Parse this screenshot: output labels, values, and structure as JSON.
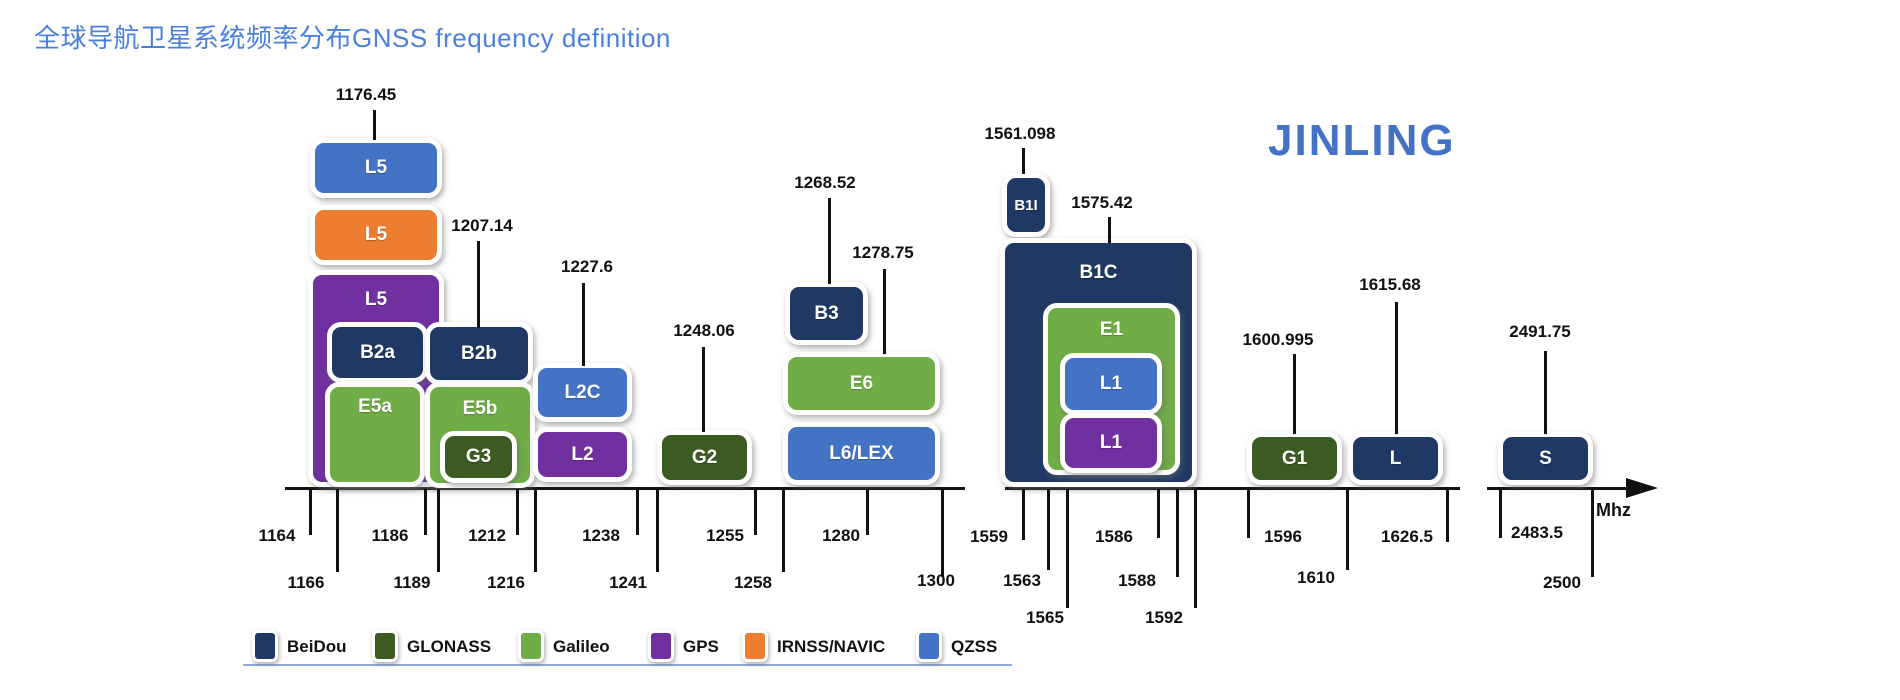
{
  "title": "全球导航卫星系统频率分布GNSS frequency definition",
  "brand": "JINLING",
  "axis": {
    "unit": "Mhz"
  },
  "systems": {
    "beidou": {
      "name": "BeiDou",
      "color": "#1f3864"
    },
    "glonass": {
      "name": "GLONASS",
      "color": "#3b5b23"
    },
    "galileo": {
      "name": "Galileo",
      "color": "#70ad47"
    },
    "gps": {
      "name": "GPS",
      "color": "#7030a0"
    },
    "irnss": {
      "name": "IRNSS/NAVIC",
      "color": "#ed7d31"
    },
    "qzss": {
      "name": "QZSS",
      "color": "#4472c4"
    }
  },
  "legend": [
    "beidou",
    "glonass",
    "galileo",
    "gps",
    "irnss",
    "qzss"
  ],
  "bands": [
    {
      "id": "qzss_l5",
      "label": "L5",
      "system": "qzss"
    },
    {
      "id": "irnss_l5",
      "label": "L5",
      "system": "irnss"
    },
    {
      "id": "gps_l5",
      "label": "L5",
      "system": "gps"
    },
    {
      "id": "b2a",
      "label": "B2a",
      "system": "beidou"
    },
    {
      "id": "e5a",
      "label": "E5a",
      "system": "galileo"
    },
    {
      "id": "b2b",
      "label": "B2b",
      "system": "beidou"
    },
    {
      "id": "e5b",
      "label": "E5b",
      "system": "galileo"
    },
    {
      "id": "g3",
      "label": "G3",
      "system": "glonass"
    },
    {
      "id": "l2c",
      "label": "L2C",
      "system": "qzss"
    },
    {
      "id": "l2",
      "label": "L2",
      "system": "gps"
    },
    {
      "id": "g2",
      "label": "G2",
      "system": "glonass"
    },
    {
      "id": "b3",
      "label": "B3",
      "system": "beidou"
    },
    {
      "id": "e6",
      "label": "E6",
      "system": "galileo"
    },
    {
      "id": "l6lex",
      "label": "L6/LEX",
      "system": "qzss"
    },
    {
      "id": "b1i",
      "label": "B1I",
      "system": "beidou"
    },
    {
      "id": "b1c",
      "label": "B1C",
      "system": "beidou"
    },
    {
      "id": "e1",
      "label": "E1",
      "system": "galileo"
    },
    {
      "id": "l1a",
      "label": "L1",
      "system": "qzss"
    },
    {
      "id": "l1b",
      "label": "L1",
      "system": "gps"
    },
    {
      "id": "g1",
      "label": "G1",
      "system": "glonass"
    },
    {
      "id": "lband",
      "label": "L",
      "system": "beidou"
    },
    {
      "id": "sband",
      "label": "S",
      "system": "beidou"
    }
  ],
  "markers": [
    {
      "label": "1176.45"
    },
    {
      "label": "1207.14"
    },
    {
      "label": "1227.6"
    },
    {
      "label": "1248.06"
    },
    {
      "label": "1268.52"
    },
    {
      "label": "1278.75"
    },
    {
      "label": "1561.098"
    },
    {
      "label": "1575.42"
    },
    {
      "label": "1600.995"
    },
    {
      "label": "1615.68"
    },
    {
      "label": "2491.75"
    }
  ],
  "ticks": [
    {
      "label": "1164"
    },
    {
      "label": "1166"
    },
    {
      "label": "1186"
    },
    {
      "label": "1189"
    },
    {
      "label": "1212"
    },
    {
      "label": "1216"
    },
    {
      "label": "1238"
    },
    {
      "label": "1241"
    },
    {
      "label": "1255"
    },
    {
      "label": "1258"
    },
    {
      "label": "1280"
    },
    {
      "label": "1300"
    },
    {
      "label": "1559"
    },
    {
      "label": "1563"
    },
    {
      "label": "1565"
    },
    {
      "label": "1586"
    },
    {
      "label": "1588"
    },
    {
      "label": "1592"
    },
    {
      "label": "1596"
    },
    {
      "label": "1610"
    },
    {
      "label": "1626.5"
    },
    {
      "label": "2483.5"
    },
    {
      "label": "2500"
    }
  ]
}
